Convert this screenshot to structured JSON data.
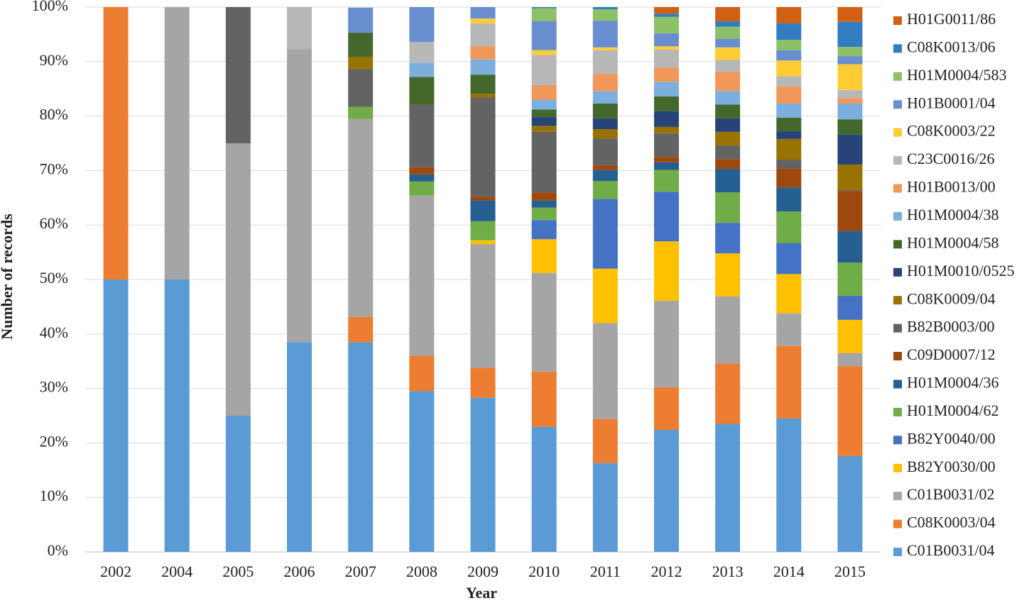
{
  "chart_data": {
    "type": "stacked_bar",
    "x_label": "Year",
    "y_label": "Number of records",
    "categories": [
      "2002",
      "2004",
      "2005",
      "2006",
      "2007",
      "2008",
      "2009",
      "2010",
      "2011",
      "2012",
      "2013",
      "2014",
      "2015"
    ],
    "ylim": [
      0,
      100
    ],
    "yticks": [
      {
        "value": 0,
        "label": "0%"
      },
      {
        "value": 10,
        "label": "10%"
      },
      {
        "value": 20,
        "label": "20%"
      },
      {
        "value": 30,
        "label": "30%"
      },
      {
        "value": 40,
        "label": "40%"
      },
      {
        "value": 50,
        "label": "50%"
      },
      {
        "value": 60,
        "label": "60%"
      },
      {
        "value": 70,
        "label": "70%"
      },
      {
        "value": 80,
        "label": "80%"
      },
      {
        "value": 90,
        "label": "90%"
      },
      {
        "value": 100,
        "label": "100%"
      }
    ],
    "grid": true,
    "legend": "right",
    "series": [
      {
        "name": "C01B0031/04",
        "color": "#5b9bd5",
        "values": [
          50,
          50,
          25,
          38.5,
          38.5,
          29.5,
          28.3,
          23,
          16.3,
          22.4,
          23.5,
          24.5,
          17.6
        ]
      },
      {
        "name": "C08K0003/04",
        "color": "#ed7d31",
        "values": [
          50,
          0,
          0,
          0,
          4.6,
          6.5,
          5.5,
          10.1,
          8.1,
          7.8,
          11.1,
          13.3,
          16.5
        ]
      },
      {
        "name": "C01B0031/02",
        "color": "#a5a5a5",
        "values": [
          0,
          50,
          50,
          53.8,
          36.4,
          29.4,
          22.7,
          18.1,
          17.6,
          15.9,
          12.3,
          6,
          2.4
        ]
      },
      {
        "name": "B82Y0030/00",
        "color": "#ffc000",
        "values": [
          0,
          0,
          0,
          0,
          0,
          0,
          0.7,
          6.2,
          10,
          10.9,
          7.9,
          7.2,
          6.1
        ]
      },
      {
        "name": "B82Y0040/00",
        "color": "#4472c4",
        "values": [
          0,
          0,
          0,
          0,
          0,
          0,
          0,
          3.5,
          12.8,
          9.1,
          5.6,
          5.7,
          4.4
        ]
      },
      {
        "name": "H01M0004/62",
        "color": "#70ad47",
        "values": [
          0,
          0,
          0,
          0,
          2.2,
          2.6,
          3.5,
          2.3,
          3.3,
          4,
          5.6,
          5.8,
          6.1
        ]
      },
      {
        "name": "H01M0004/36",
        "color": "#255e91",
        "values": [
          0,
          0,
          0,
          0,
          0,
          1.3,
          3.8,
          1.3,
          2,
          1.4,
          4.3,
          4.4,
          5.8
        ]
      },
      {
        "name": "C09D0007/12",
        "color": "#9e480e",
        "values": [
          0,
          0,
          0,
          0,
          0,
          1.3,
          0.7,
          1.5,
          0.9,
          1,
          1.8,
          3.5,
          7.3
        ]
      },
      {
        "name": "B82B0003/00",
        "color": "#636363",
        "values": [
          0,
          0,
          25,
          0,
          6.9,
          11.5,
          18.2,
          11.1,
          4.9,
          4.3,
          2.5,
          1.6,
          0.2
        ]
      },
      {
        "name": "C08K0009/04",
        "color": "#997300",
        "values": [
          0,
          0,
          0,
          0,
          2.2,
          0,
          0.7,
          1.1,
          1.7,
          1.2,
          2.5,
          3.8,
          4.7
        ]
      },
      {
        "name": "H01M0010/0525",
        "color": "#264478",
        "values": [
          0,
          0,
          0,
          0,
          0,
          0,
          0,
          1.6,
          2,
          2.9,
          2.5,
          1.4,
          5.5
        ]
      },
      {
        "name": "H01M0004/58",
        "color": "#43682b",
        "values": [
          0,
          0,
          0,
          0,
          4.5,
          5.1,
          3.5,
          1.4,
          2.7,
          2.7,
          2.5,
          2.5,
          2.8
        ]
      },
      {
        "name": "H01M0004/38",
        "color": "#7cafdd",
        "values": [
          0,
          0,
          0,
          0,
          0,
          2.6,
          2.8,
          1.8,
          2.3,
          2.7,
          2.5,
          2.6,
          2.9
        ]
      },
      {
        "name": "H01B0013/00",
        "color": "#f1975a",
        "values": [
          0,
          0,
          0,
          0,
          0,
          0,
          2.4,
          2.7,
          3.1,
          2.6,
          3.5,
          3.1,
          1
        ]
      },
      {
        "name": "C23C0016/26",
        "color": "#b7b7b7",
        "values": [
          0,
          0,
          0,
          7.7,
          0,
          3.8,
          4.2,
          5.5,
          4.4,
          3.3,
          2.2,
          1.9,
          1.5
        ]
      },
      {
        "name": "C08K0003/22",
        "color": "#ffcd33",
        "values": [
          0,
          0,
          0,
          0,
          0,
          0,
          0.9,
          0.9,
          0.5,
          0.6,
          2.3,
          2.9,
          4.7
        ]
      },
      {
        "name": "H01B0001/04",
        "color": "#698ed0",
        "values": [
          0,
          0,
          0,
          0,
          4.6,
          6.4,
          2.1,
          5.3,
          4.9,
          2.4,
          1.6,
          1.9,
          1.5
        ]
      },
      {
        "name": "H01M0004/583",
        "color": "#8cc168",
        "values": [
          0,
          0,
          0,
          0,
          0,
          0,
          0,
          2.4,
          2.1,
          3,
          2.2,
          1.9,
          1.7
        ]
      },
      {
        "name": "C08K0013/06",
        "color": "#327dc2",
        "values": [
          0,
          0,
          0,
          0,
          0,
          0,
          0,
          0.2,
          0.4,
          0.6,
          1,
          3,
          4.6
        ]
      },
      {
        "name": "H01G0011/86",
        "color": "#d26012",
        "values": [
          0,
          0,
          0,
          0,
          0,
          0,
          0,
          0,
          0,
          1.2,
          2.6,
          3,
          2.7
        ]
      }
    ]
  }
}
